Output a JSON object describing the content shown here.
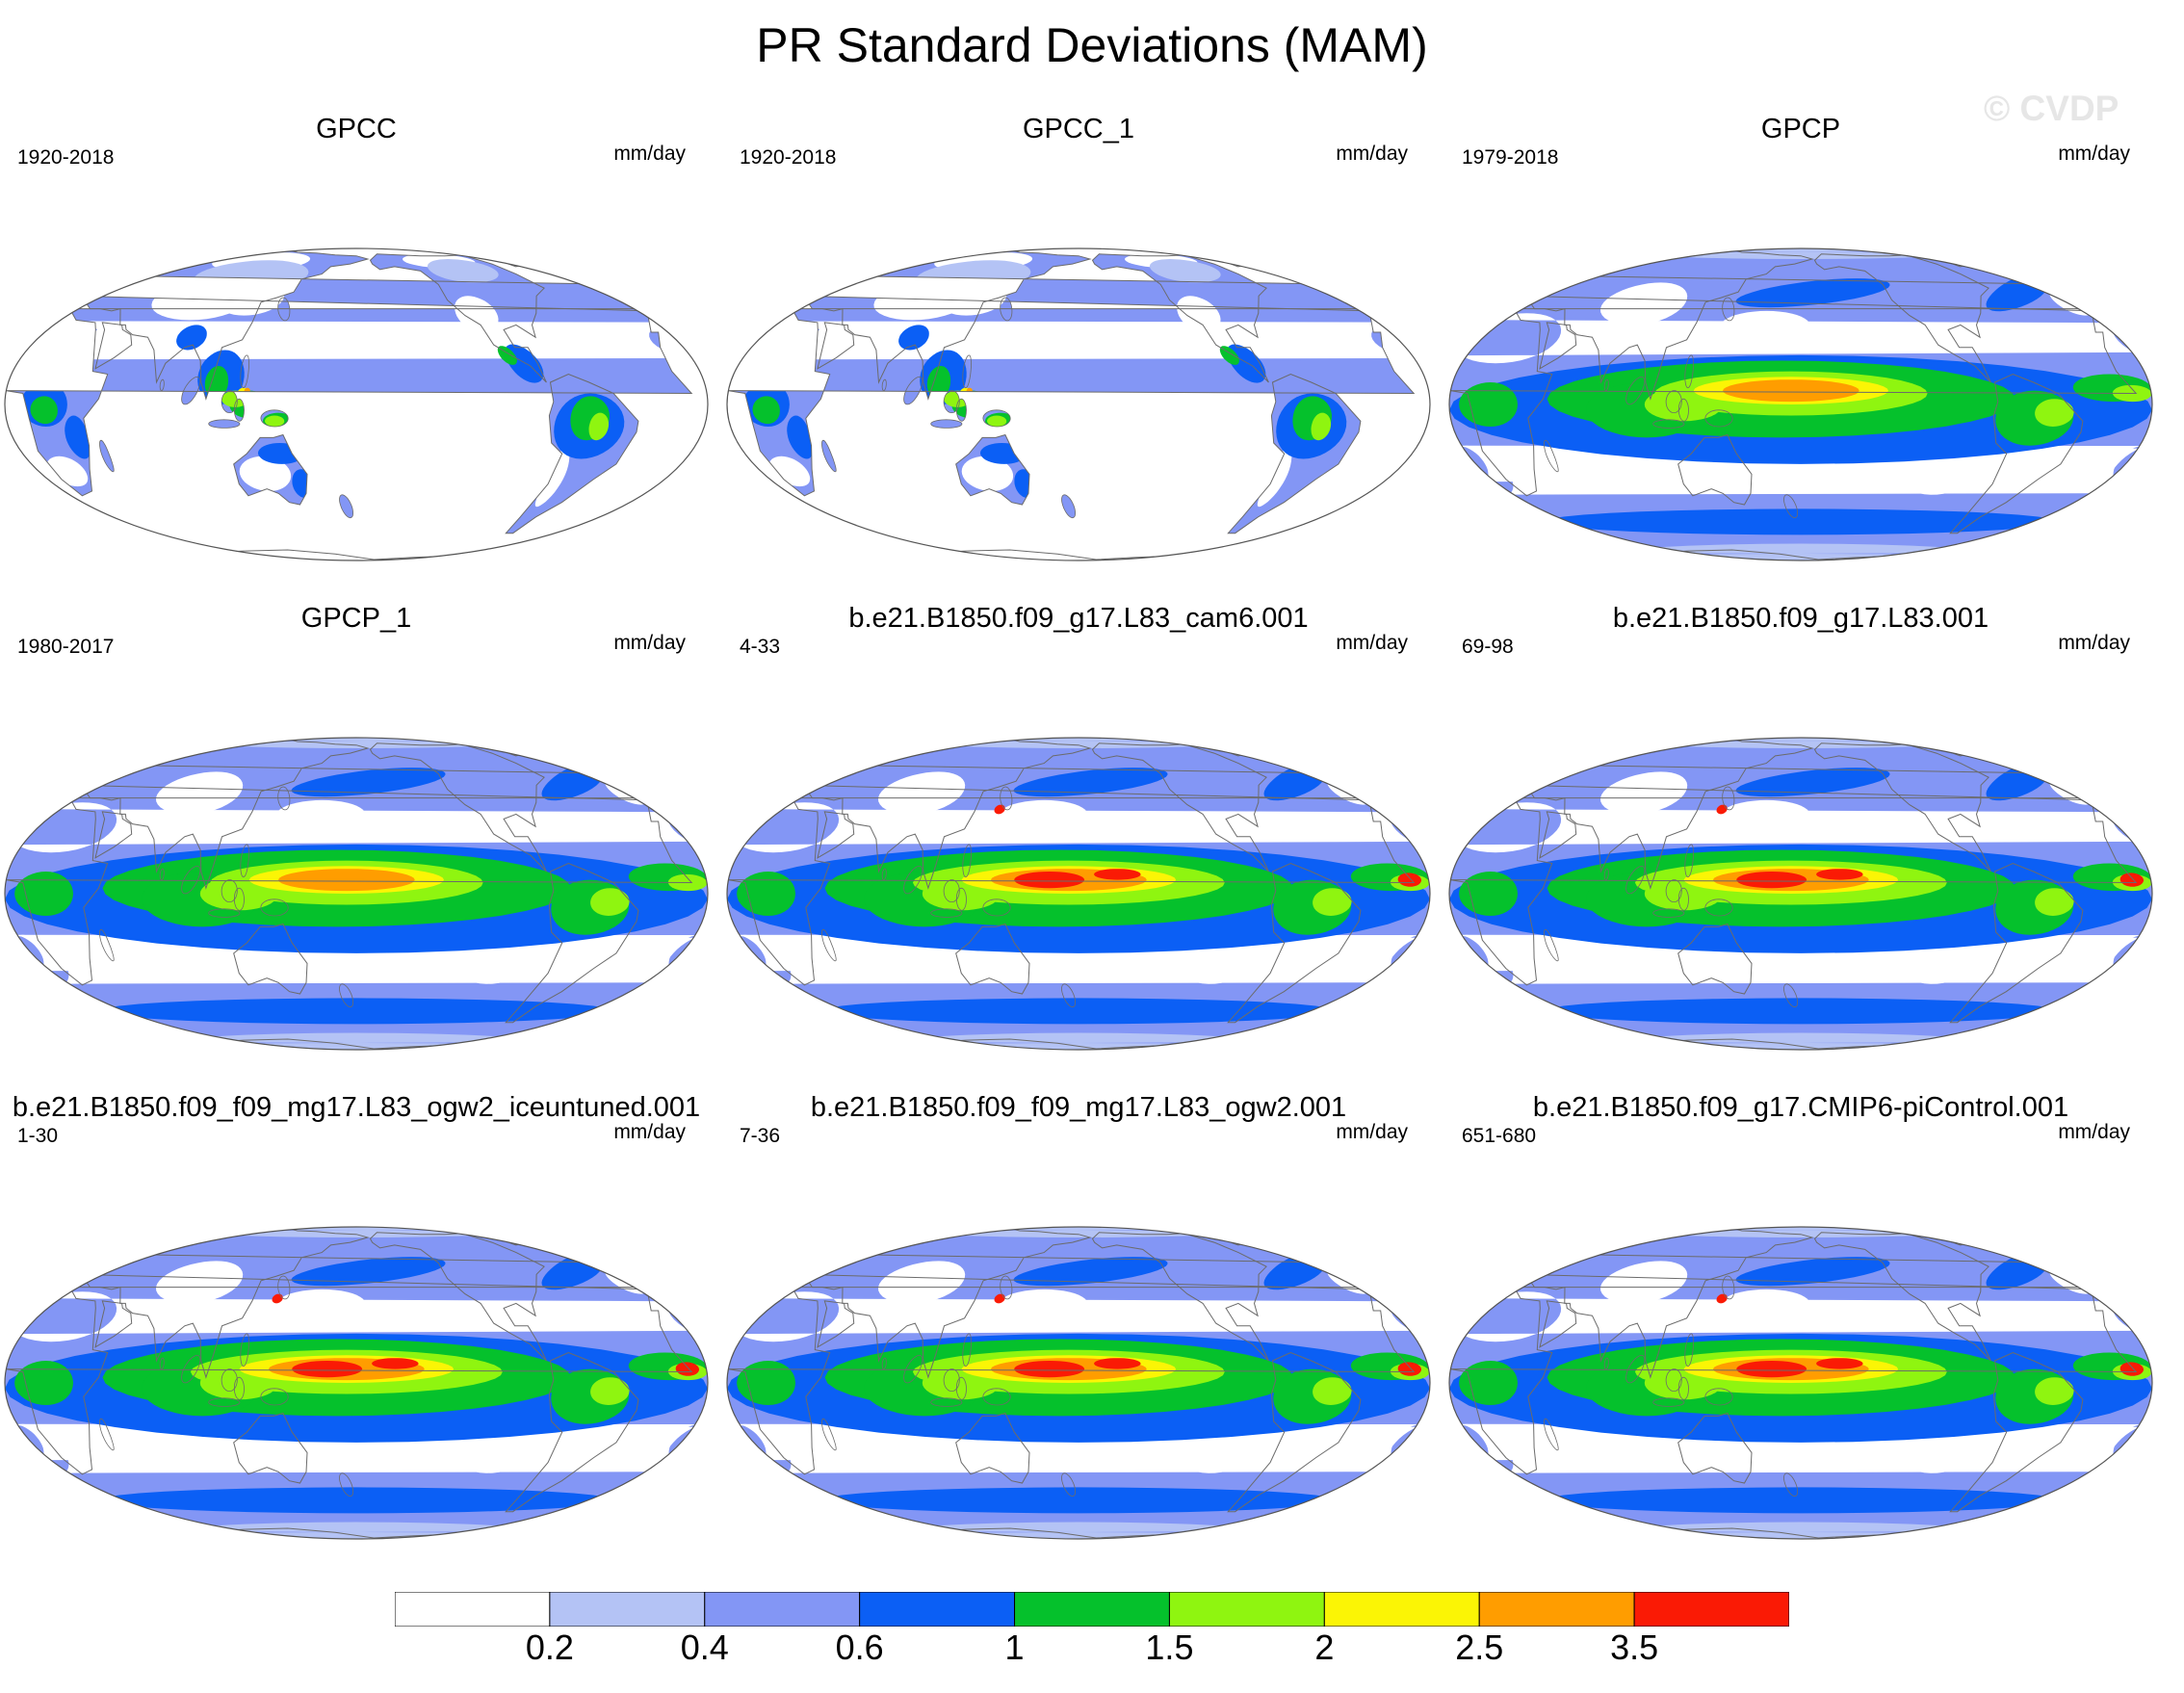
{
  "title": "PR Standard Deviations (MAM)",
  "watermark": "© CVDP",
  "units": "mm/day",
  "colorbar": {
    "colors": [
      "#ffffff",
      "#b4c3f5",
      "#8396f5",
      "#0b5ff5",
      "#05c12c",
      "#8ff510",
      "#fbf505",
      "#ff9d00",
      "#fa1a05"
    ],
    "levels": [
      "0.2",
      "0.4",
      "0.6",
      "1",
      "1.5",
      "2",
      "2.5",
      "3.5"
    ]
  },
  "panels": [
    {
      "title": "GPCC",
      "period": "1920-2018",
      "kind": "land"
    },
    {
      "title": "GPCC_1",
      "period": "1920-2018",
      "kind": "land"
    },
    {
      "title": "GPCP",
      "period": "1979-2018",
      "kind": "obs"
    },
    {
      "title": "GPCP_1",
      "period": "1980-2017",
      "kind": "obs"
    },
    {
      "title": "b.e21.B1850.f09_g17.L83_cam6.001",
      "period": "4-33",
      "kind": "model"
    },
    {
      "title": "b.e21.B1850.f09_g17.L83.001",
      "period": "69-98",
      "kind": "model"
    },
    {
      "title": "b.e21.B1850.f09_f09_mg17.L83_ogw2_iceuntuned.001",
      "period": "1-30",
      "kind": "model"
    },
    {
      "title": "b.e21.B1850.f09_f09_mg17.L83_ogw2.001",
      "period": "7-36",
      "kind": "model"
    },
    {
      "title": "b.e21.B1850.f09_g17.CMIP6-piControl.001",
      "period": "651-680",
      "kind": "model"
    }
  ]
}
